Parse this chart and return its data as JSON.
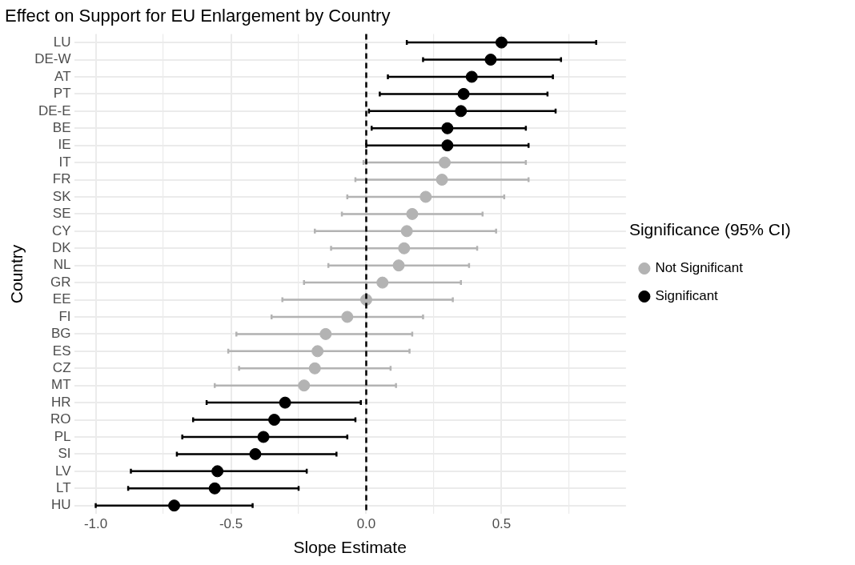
{
  "chart_data": {
    "type": "scatter",
    "orientation": "horizontal",
    "title": "Effect on Support for EU Enlargement by Country",
    "xlabel": "Slope Estimate",
    "ylabel": "Country",
    "legend_title": "Significance (95% CI)",
    "legend": "right",
    "grid": true,
    "marker": "circle",
    "categories": [
      "LU",
      "DE-W",
      "AT",
      "PT",
      "DE-E",
      "BE",
      "IE",
      "IT",
      "FR",
      "SK",
      "SE",
      "CY",
      "DK",
      "NL",
      "GR",
      "EE",
      "FI",
      "BG",
      "ES",
      "CZ",
      "MT",
      "HR",
      "RO",
      "PL",
      "SI",
      "LV",
      "LT",
      "HU"
    ],
    "xlim": [
      -1.08,
      0.96
    ],
    "xticks": [
      {
        "value": -1,
        "label": "-1.0"
      },
      {
        "value": -0.75,
        "label": null
      },
      {
        "value": -0.5,
        "label": "-0.5"
      },
      {
        "value": -0.25,
        "label": null
      },
      {
        "value": 0,
        "label": "0.0"
      },
      {
        "value": 0.25,
        "label": null
      },
      {
        "value": 0.5,
        "label": "0.5"
      },
      {
        "value": 0.75,
        "label": null
      }
    ],
    "ref_lines": [
      {
        "axis": "x",
        "value": 0,
        "color": "#000000",
        "line_style": "dashed"
      }
    ],
    "series": [
      {
        "name": "Not Significant",
        "color": "#b3b3b3",
        "values": [
          null,
          null,
          null,
          null,
          null,
          null,
          null,
          0.29,
          0.28,
          0.22,
          0.17,
          0.15,
          0.14,
          0.12,
          0.06,
          0.0,
          -0.07,
          -0.15,
          -0.18,
          -0.19,
          -0.23,
          null,
          null,
          null,
          null,
          null,
          null,
          null
        ],
        "errors": [
          null,
          null,
          null,
          null,
          null,
          null,
          null,
          [
            -0.01,
            0.59
          ],
          [
            -0.04,
            0.6
          ],
          [
            -0.07,
            0.51
          ],
          [
            -0.09,
            0.43
          ],
          [
            -0.19,
            0.48
          ],
          [
            -0.13,
            0.41
          ],
          [
            -0.14,
            0.38
          ],
          [
            -0.23,
            0.35
          ],
          [
            -0.31,
            0.32
          ],
          [
            -0.35,
            0.21
          ],
          [
            -0.48,
            0.17
          ],
          [
            -0.51,
            0.16
          ],
          [
            -0.47,
            0.09
          ],
          [
            -0.56,
            0.11
          ],
          null,
          null,
          null,
          null,
          null,
          null,
          null
        ]
      },
      {
        "name": "Significant",
        "color": "#000000",
        "values": [
          0.5,
          0.46,
          0.39,
          0.36,
          0.35,
          0.3,
          0.3,
          null,
          null,
          null,
          null,
          null,
          null,
          null,
          null,
          null,
          null,
          null,
          null,
          null,
          null,
          -0.3,
          -0.34,
          -0.38,
          -0.41,
          -0.55,
          -0.56,
          -0.71
        ],
        "errors": [
          [
            0.15,
            0.85
          ],
          [
            0.21,
            0.72
          ],
          [
            0.08,
            0.69
          ],
          [
            0.05,
            0.67
          ],
          [
            0.01,
            0.7
          ],
          [
            0.02,
            0.59
          ],
          [
            0.0,
            0.6
          ],
          null,
          null,
          null,
          null,
          null,
          null,
          null,
          null,
          null,
          null,
          null,
          null,
          null,
          null,
          [
            -0.59,
            -0.02
          ],
          [
            -0.64,
            -0.04
          ],
          [
            -0.68,
            -0.07
          ],
          [
            -0.7,
            -0.11
          ],
          [
            -0.87,
            -0.22
          ],
          [
            -0.88,
            -0.25
          ],
          [
            -1.0,
            -0.42
          ]
        ]
      }
    ]
  }
}
